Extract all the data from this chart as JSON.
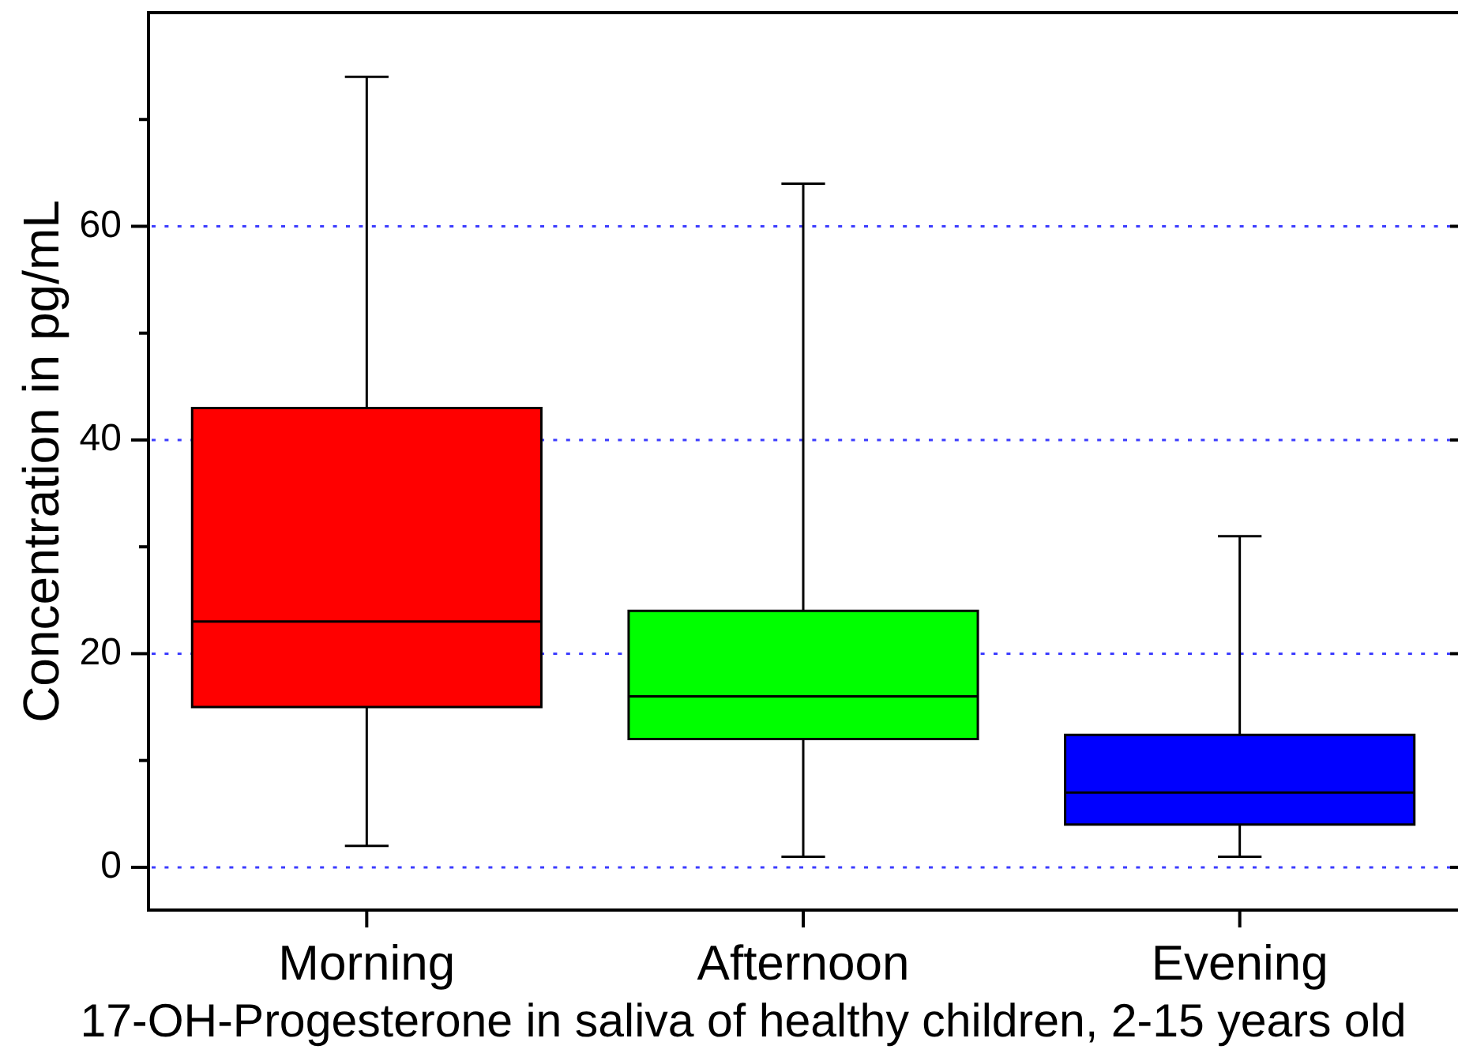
{
  "chart_data": {
    "type": "box",
    "xlabel": "17-OH-Progesterone in saliva of healthy children, 2-15 years old",
    "ylabel": "Concentration in pg/mL",
    "categories": [
      "Morning",
      "Afternoon",
      "Evening"
    ],
    "colors": [
      "#ff0000",
      "#00ff00",
      "#0000ff"
    ],
    "boxes": [
      {
        "low": 2,
        "q1": 15,
        "median": 23,
        "q3": 43,
        "high": 74
      },
      {
        "low": 1,
        "q1": 12,
        "median": 16,
        "q3": 24,
        "high": 64
      },
      {
        "low": 1,
        "q1": 4,
        "median": 7,
        "q3": 12.4,
        "high": 31
      }
    ],
    "ylim": [
      -4,
      80
    ],
    "yticks": [
      0,
      {
        "value": 10,
        "label": null
      },
      20,
      {
        "value": 30,
        "label": null
      },
      40,
      {
        "value": 50,
        "label": null
      },
      60,
      {
        "value": 70,
        "label": null
      }
    ],
    "grid": "y",
    "legend": false
  }
}
